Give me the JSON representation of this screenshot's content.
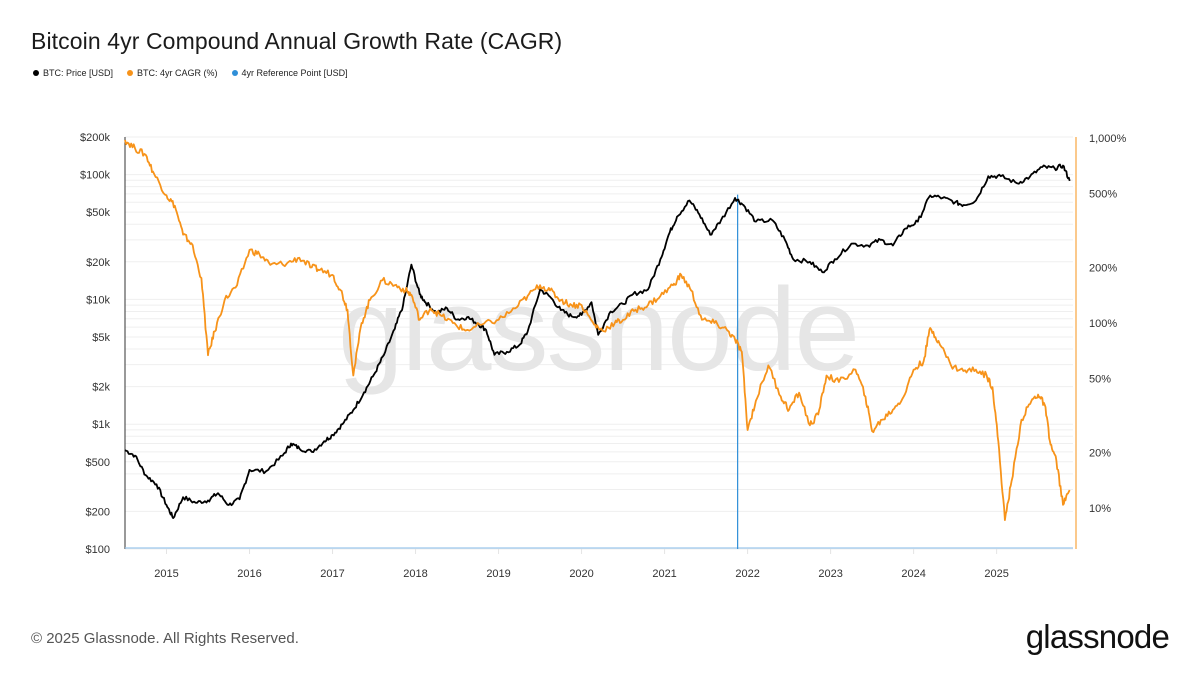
{
  "title": "Bitcoin 4yr Compound Annual Growth Rate (CAGR)",
  "legend": [
    {
      "label": "BTC: Price [USD]",
      "color": "#000000"
    },
    {
      "label": "BTC: 4yr CAGR (%)",
      "color": "#f7931a"
    },
    {
      "label": "4yr Reference Point [USD]",
      "color": "#2f8fd8"
    }
  ],
  "watermark": "glassnode",
  "footer": {
    "copyright": "© 2025 Glassnode. All Rights Reserved.",
    "logo": "glassnode"
  },
  "chart_data": {
    "type": "line",
    "title": "Bitcoin 4yr Compound Annual Growth Rate (CAGR)",
    "xlabel": "",
    "x_range": [
      2014.5,
      2025.92
    ],
    "x_ticks": [
      "2015",
      "2016",
      "2017",
      "2018",
      "2019",
      "2020",
      "2021",
      "2022",
      "2023",
      "2024",
      "2025"
    ],
    "y_left": {
      "label": "BTC: Price [USD]",
      "scale": "log",
      "range": [
        100,
        200000
      ],
      "ticks": [
        {
          "value": 200000,
          "label": "$200k"
        },
        {
          "value": 100000,
          "label": "$100k"
        },
        {
          "value": 50000,
          "label": "$50k"
        },
        {
          "value": 20000,
          "label": "$20k"
        },
        {
          "value": 10000,
          "label": "$10k"
        },
        {
          "value": 5000,
          "label": "$5k"
        },
        {
          "value": 2000,
          "label": "$2k"
        },
        {
          "value": 1000,
          "label": "$1k"
        },
        {
          "value": 500,
          "label": "$500"
        },
        {
          "value": 200,
          "label": "$200"
        },
        {
          "value": 100,
          "label": "$100"
        }
      ]
    },
    "y_right": {
      "label": "BTC: 4yr CAGR (%)",
      "scale": "log",
      "range": [
        6.5,
        1000
      ],
      "ticks": [
        {
          "value": 1000,
          "label": "1,000%"
        },
        {
          "value": 500,
          "label": "500%"
        },
        {
          "value": 200,
          "label": "200%"
        },
        {
          "value": 100,
          "label": "100%"
        },
        {
          "value": 50,
          "label": "50%"
        },
        {
          "value": 20,
          "label": "20%"
        },
        {
          "value": 10,
          "label": "10%"
        }
      ]
    },
    "grid": true,
    "legend_position": "top-left",
    "reference_point": {
      "name": "4yr Reference Point [USD]",
      "x": 2021.88
    },
    "series": [
      {
        "name": "BTC: Price [USD]",
        "axis": "left",
        "color": "#000000",
        "x": [
          2014.5,
          2014.62,
          2014.75,
          2014.88,
          2015.0,
          2015.08,
          2015.2,
          2015.35,
          2015.5,
          2015.62,
          2015.75,
          2015.88,
          2016.0,
          2016.2,
          2016.4,
          2016.5,
          2016.6,
          2016.75,
          2016.9,
          2017.0,
          2017.12,
          2017.25,
          2017.38,
          2017.5,
          2017.62,
          2017.75,
          2017.85,
          2017.95,
          2018.05,
          2018.12,
          2018.25,
          2018.38,
          2018.5,
          2018.62,
          2018.75,
          2018.85,
          2018.95,
          2019.1,
          2019.25,
          2019.35,
          2019.5,
          2019.62,
          2019.75,
          2019.88,
          2020.0,
          2020.12,
          2020.2,
          2020.35,
          2020.5,
          2020.62,
          2020.8,
          2020.95,
          2021.05,
          2021.15,
          2021.3,
          2021.42,
          2021.55,
          2021.68,
          2021.85,
          2021.95,
          2022.1,
          2022.3,
          2022.45,
          2022.55,
          2022.75,
          2022.9,
          2023.05,
          2023.25,
          2023.45,
          2023.6,
          2023.75,
          2023.9,
          2024.05,
          2024.2,
          2024.35,
          2024.5,
          2024.6,
          2024.75,
          2024.9,
          2025.05,
          2025.25,
          2025.4,
          2025.55,
          2025.7,
          2025.8,
          2025.88
        ],
        "values": [
          620,
          560,
          390,
          330,
          225,
          177,
          260,
          235,
          245,
          280,
          225,
          250,
          430,
          420,
          560,
          700,
          640,
          600,
          730,
          820,
          1000,
          1300,
          1800,
          2500,
          3600,
          5800,
          9000,
          19000,
          11000,
          9500,
          7800,
          8500,
          6900,
          7200,
          6400,
          5700,
          3600,
          3800,
          4300,
          5500,
          12000,
          10500,
          8200,
          7300,
          7500,
          9500,
          5200,
          8000,
          9200,
          11000,
          12000,
          21000,
          33000,
          46000,
          62000,
          48000,
          33000,
          43000,
          65000,
          57000,
          42000,
          43000,
          30000,
          21000,
          20000,
          16500,
          21000,
          28000,
          27000,
          30000,
          27000,
          37000,
          42000,
          68000,
          65000,
          60000,
          57000,
          62000,
          97000,
          97000,
          85000,
          96000,
          115000,
          112000,
          118000,
          89000
        ]
      },
      {
        "name": "BTC: 4yr CAGR (%)",
        "axis": "right",
        "color": "#f7931a",
        "x": [
          2014.5,
          2014.62,
          2014.75,
          2014.85,
          2015.0,
          2015.1,
          2015.2,
          2015.3,
          2015.42,
          2015.5,
          2015.58,
          2015.7,
          2015.85,
          2016.0,
          2016.12,
          2016.25,
          2016.45,
          2016.6,
          2016.75,
          2016.85,
          2017.0,
          2017.1,
          2017.18,
          2017.25,
          2017.35,
          2017.45,
          2017.6,
          2017.75,
          2017.88,
          2017.95,
          2018.05,
          2018.18,
          2018.3,
          2018.45,
          2018.6,
          2018.8,
          2019.0,
          2019.2,
          2019.35,
          2019.5,
          2019.62,
          2019.75,
          2019.88,
          2020.0,
          2020.15,
          2020.25,
          2020.4,
          2020.5,
          2020.65,
          2020.8,
          2020.95,
          2021.1,
          2021.2,
          2021.32,
          2021.45,
          2021.6,
          2021.75,
          2021.85,
          2021.93,
          2022.0,
          2022.1,
          2022.25,
          2022.4,
          2022.5,
          2022.62,
          2022.75,
          2022.85,
          2022.95,
          2023.1,
          2023.3,
          2023.42,
          2023.5,
          2023.62,
          2023.75,
          2023.88,
          2024.0,
          2024.12,
          2024.2,
          2024.3,
          2024.45,
          2024.6,
          2024.75,
          2024.88,
          2024.95,
          2025.02,
          2025.1,
          2025.18,
          2025.3,
          2025.42,
          2025.5,
          2025.58,
          2025.65,
          2025.72,
          2025.8,
          2025.88
        ],
        "values": [
          975,
          880,
          810,
          640,
          490,
          430,
          300,
          270,
          175,
          67,
          90,
          133,
          160,
          248,
          235,
          206,
          210,
          225,
          200,
          194,
          182,
          150,
          118,
          52,
          100,
          133,
          170,
          160,
          150,
          142,
          104,
          120,
          110,
          100,
          91,
          98,
          104,
          120,
          140,
          160,
          150,
          133,
          125,
          125,
          98,
          91,
          100,
          104,
          118,
          125,
          140,
          160,
          182,
          150,
          104,
          100,
          92,
          81,
          70,
          26.4,
          38,
          59,
          40,
          34,
          42,
          28,
          32,
          52,
          48,
          56,
          40,
          26,
          30,
          34,
          40,
          56,
          62,
          94,
          80,
          59,
          55,
          56,
          52,
          45,
          23,
          8.6,
          14,
          30,
          38,
          41,
          36,
          22,
          18,
          10.4,
          12.5
        ]
      }
    ]
  }
}
